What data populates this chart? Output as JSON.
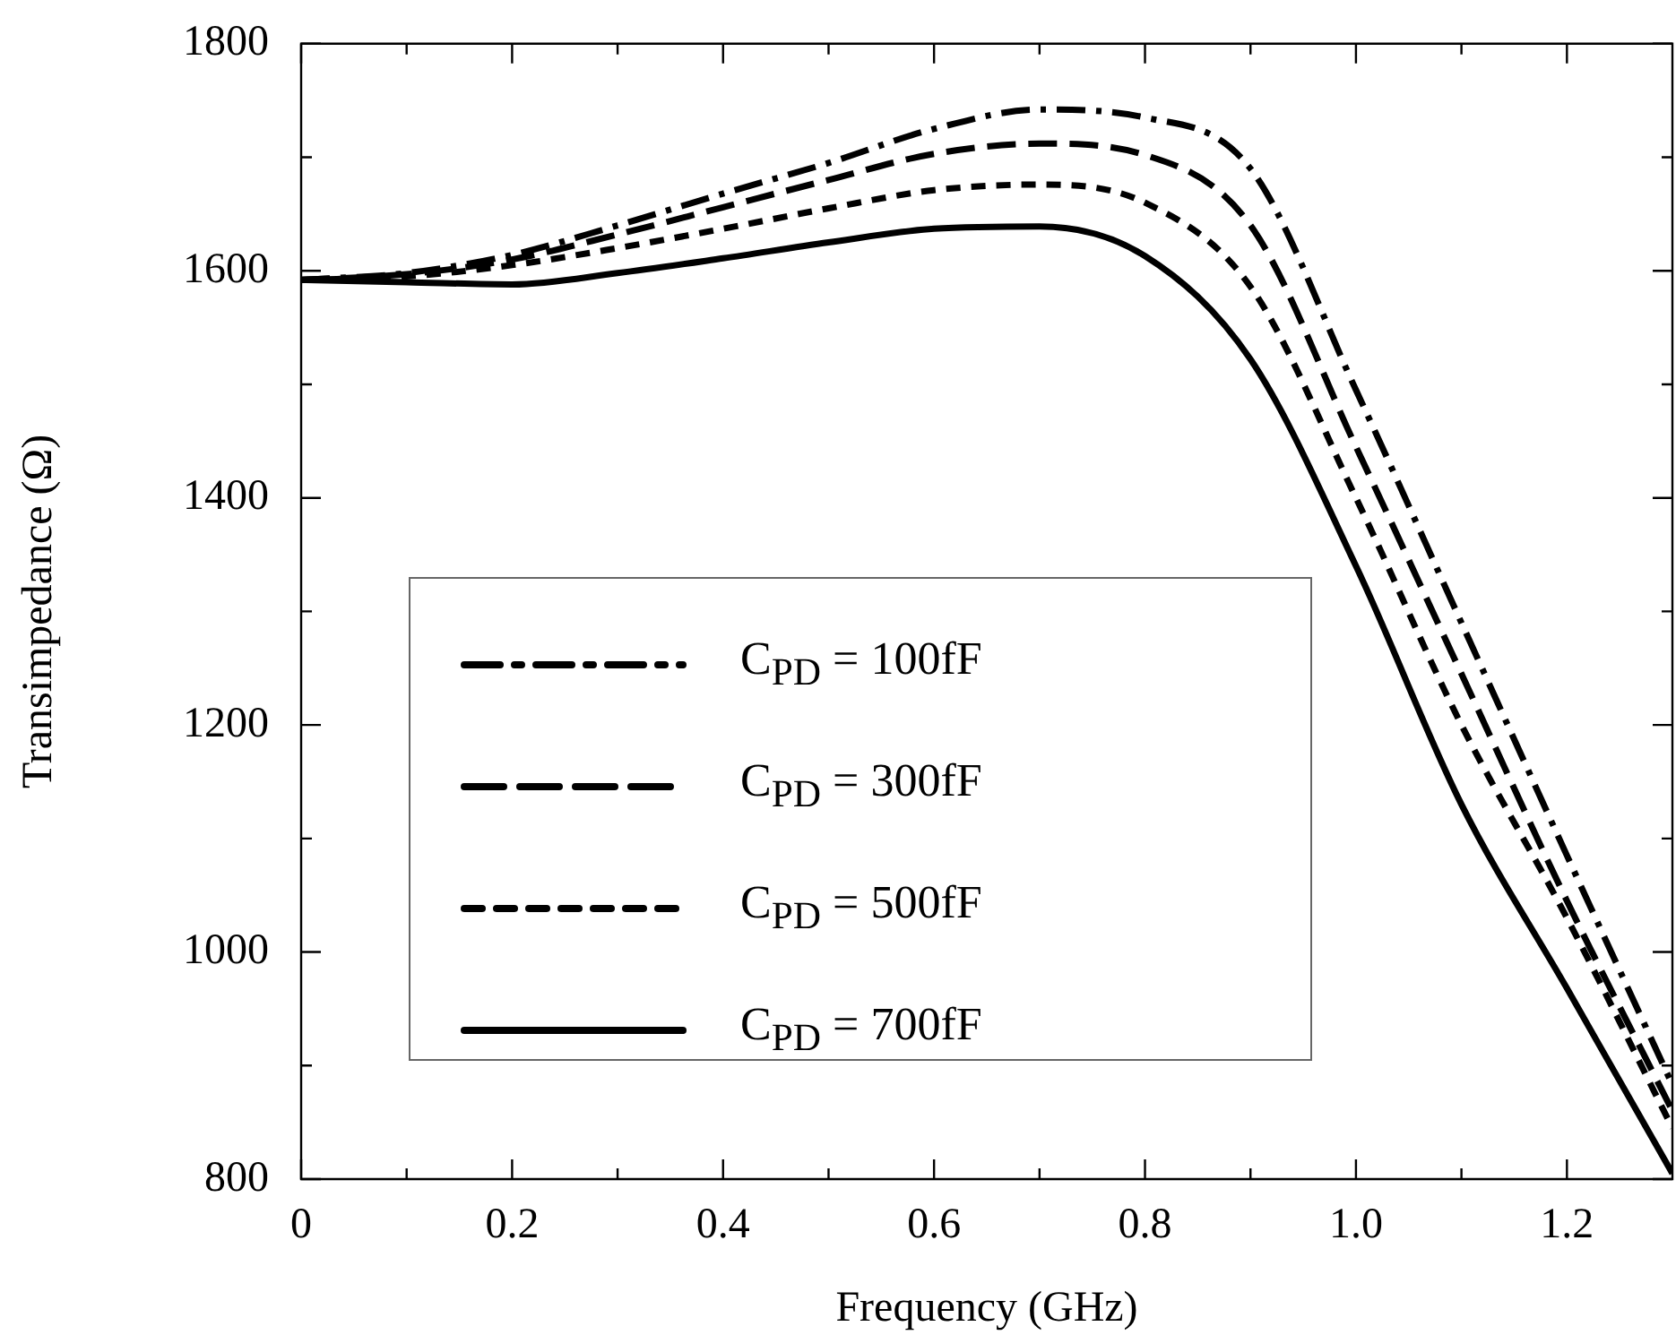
{
  "chart_data": {
    "type": "line",
    "xlabel": "Frequency (GHz)",
    "ylabel": "Transimpedance (Ω)",
    "x": [
      0,
      0.1,
      0.2,
      0.3,
      0.4,
      0.5,
      0.6,
      0.7,
      0.8,
      0.9,
      1.0,
      1.1,
      1.2,
      1.3
    ],
    "series": [
      {
        "name": "C$_{PD}$ = 100fF",
        "color": "#000000",
        "line_style": "dashdot",
        "values": [
          1592,
          1598,
          1614,
          1640,
          1668,
          1695,
          1725,
          1742,
          1735,
          1690,
          1495,
          1290,
          1085,
          883
        ]
      },
      {
        "name": "C$_{PD}$ = 300fF",
        "color": "#000000",
        "line_style": "dashed",
        "values": [
          1592,
          1597,
          1610,
          1632,
          1656,
          1680,
          1703,
          1712,
          1702,
          1640,
          1445,
          1245,
          1045,
          860
        ]
      },
      {
        "name": "C$_{PD}$ = 500fF",
        "color": "#000000",
        "line_style": "dotted",
        "values": [
          1592,
          1595,
          1605,
          1620,
          1637,
          1655,
          1671,
          1676,
          1660,
          1586,
          1400,
          1200,
          1030,
          845
        ]
      },
      {
        "name": "C$_{PD}$ = 700fF",
        "color": "#000000",
        "line_style": "solid",
        "values": [
          1592,
          1590,
          1588,
          1598,
          1611,
          1625,
          1637,
          1639,
          1613,
          1522,
          1340,
          1130,
          968,
          805
        ]
      }
    ],
    "xlim": [
      0,
      1.3
    ],
    "xticks": [
      0,
      {
        "value": 0.1,
        "label": null
      },
      0.2,
      {
        "value": 0.3,
        "label": null
      },
      0.4,
      {
        "value": 0.5,
        "label": null
      },
      0.6,
      {
        "value": 0.7,
        "label": null
      },
      0.8,
      {
        "value": 0.9,
        "label": null
      },
      {
        "value": 1,
        "label": "1.0"
      },
      {
        "value": 1.1,
        "label": null
      },
      1.2
    ],
    "ylim": [
      800,
      1800
    ],
    "yticks": [
      800,
      {
        "value": 900,
        "label": null
      },
      1000,
      {
        "value": 1100,
        "label": null
      },
      1200,
      {
        "value": 1300,
        "label": null
      },
      1400,
      {
        "value": 1500,
        "label": null
      },
      1600,
      {
        "value": 1700,
        "label": null
      },
      1800
    ],
    "grid": false,
    "legend": "bottom left",
    "marker": "none"
  }
}
